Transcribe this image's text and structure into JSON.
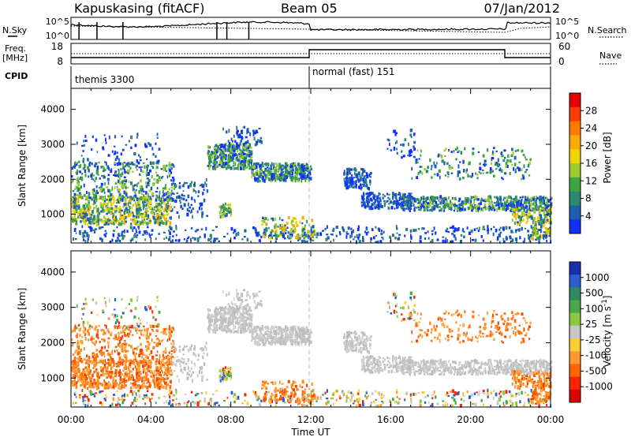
{
  "header": {
    "station": "Kapuskasing (fitACF)",
    "beam": "Beam 05",
    "date": "07/Jan/2012"
  },
  "top_panels": {
    "nsky_label": "N.Sky",
    "nsky_ticks": [
      "10^5",
      "10^0"
    ],
    "nsearch_label": "N.Search",
    "nsearch_ticks": [
      "10^5",
      "10^0"
    ],
    "freq_label_line1": "Freq.",
    "freq_label_line2": "[MHz]",
    "freq_ticks": [
      "18",
      "8"
    ],
    "nave_label": "Nave",
    "nave_ticks": [
      "60",
      "0"
    ],
    "cpid_label": "CPID",
    "cpid_modes": [
      "themis 3300",
      "normal (fast) 151"
    ]
  },
  "chart_data": [
    {
      "type": "heatmap",
      "name": "power-panel",
      "ylabel": "Slant Range [km]",
      "ylim": [
        180,
        4600
      ],
      "xlim": [
        0,
        24
      ],
      "yticks": [
        "1000",
        "2000",
        "3000",
        "4000"
      ],
      "colorbar": {
        "label": "Power [dB]",
        "ticks": [
          "28",
          "24",
          "20",
          "16",
          "12",
          "8",
          "4"
        ],
        "colors": [
          "#e60000",
          "#ff3c00",
          "#ff7a00",
          "#ffaa00",
          "#f2d400",
          "#9ccd2c",
          "#3fa63f",
          "#2c8a70",
          "#1f5fb0",
          "#1030ff"
        ]
      }
    },
    {
      "type": "heatmap",
      "name": "velocity-panel",
      "ylabel": "Slant Range [km]",
      "ylim": [
        180,
        4600
      ],
      "xlim": [
        0,
        24
      ],
      "xlabel": "Time UT",
      "xticks": [
        "00:00",
        "04:00",
        "08:00",
        "12:00",
        "16:00",
        "20:00",
        "00:00"
      ],
      "yticks": [
        "1000",
        "2000",
        "3000",
        "4000"
      ],
      "colorbar": {
        "label": "Velocity [m s",
        "label_superscript": "-1",
        "label_end": "]",
        "ticks": [
          "1000",
          "500",
          "100",
          "25",
          "-25",
          "-100",
          "-500",
          "-1000"
        ],
        "colors": [
          "#1a2fb0",
          "#2b5fd0",
          "#2e8a60",
          "#4aa84a",
          "#8cc840",
          "#c8c8c8",
          "#ffcc33",
          "#ff9933",
          "#ff6600",
          "#ff2200",
          "#dd0000"
        ]
      }
    }
  ]
}
